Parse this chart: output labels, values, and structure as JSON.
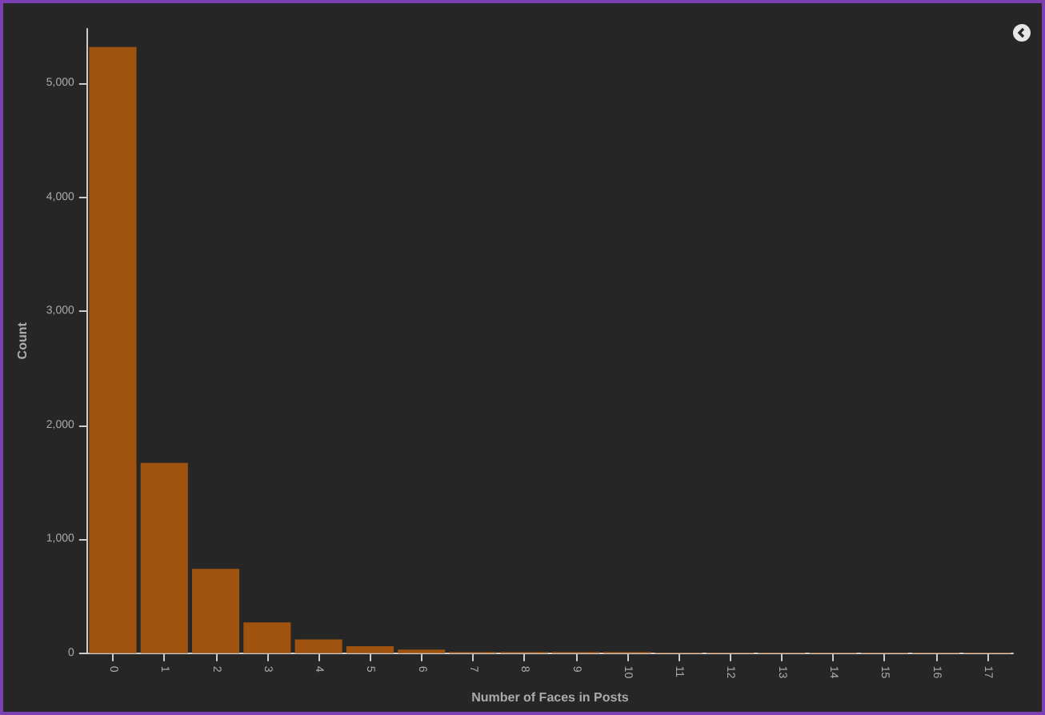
{
  "chart_data": {
    "type": "bar",
    "xlabel": "Number of Faces in Posts",
    "ylabel": "Count",
    "categories": [
      "0",
      "1",
      "2",
      "3",
      "4",
      "5",
      "6",
      "7",
      "8",
      "9",
      "10",
      "11",
      "12",
      "13",
      "14",
      "15",
      "16",
      "17"
    ],
    "values": [
      5320,
      1670,
      740,
      270,
      120,
      60,
      30,
      10,
      10,
      10,
      10,
      5,
      5,
      5,
      5,
      5,
      5,
      5
    ],
    "color": "#a0530f",
    "ylim": [
      0,
      5480
    ],
    "yticks": [
      {
        "value": 0,
        "label": "0"
      },
      {
        "value": 1000,
        "label": "1,000"
      },
      {
        "value": 2000,
        "label": "2,000"
      },
      {
        "value": 3000,
        "label": "3,000"
      },
      {
        "value": 4000,
        "label": "4,000"
      },
      {
        "value": 5000,
        "label": "5,000"
      }
    ],
    "grid": false
  }
}
